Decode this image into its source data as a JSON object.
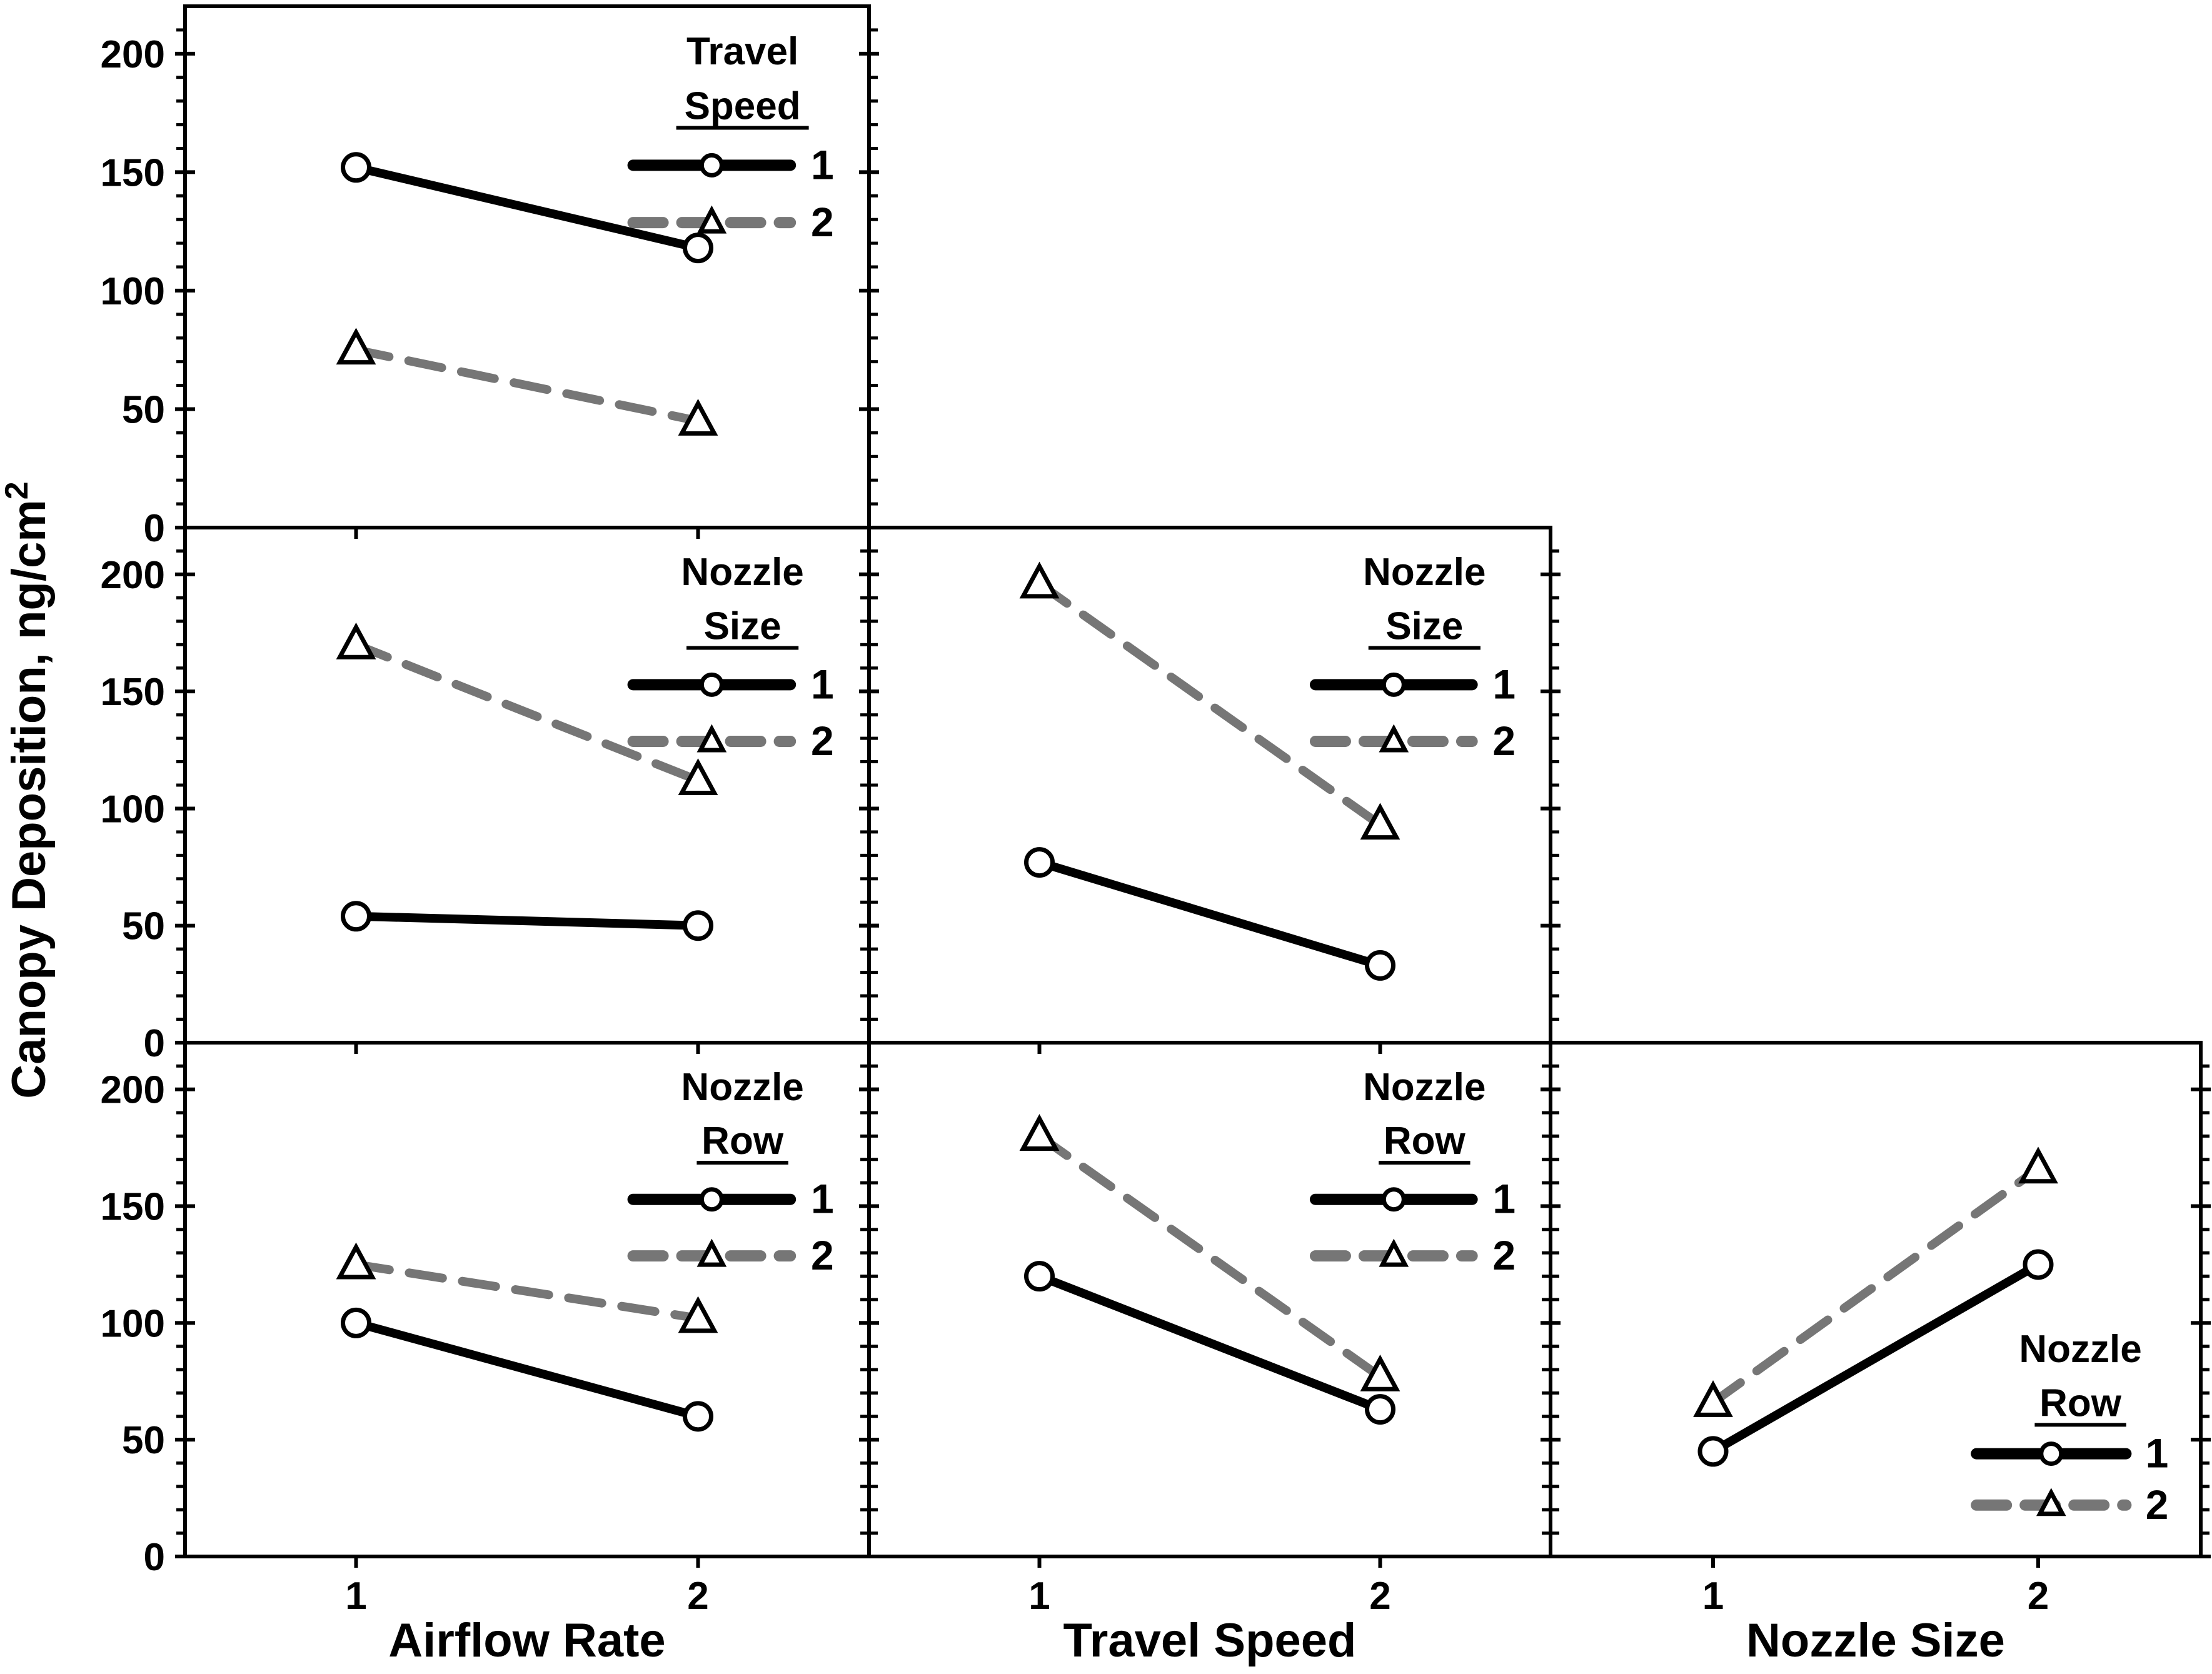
{
  "figure": {
    "background": "#ffffff",
    "border_color": "#000000",
    "accent_gray": "#767676"
  },
  "chart_data": {
    "type": "line",
    "description": "Two-way interaction plots of Canopy Deposition versus Airflow Rate, Travel Speed and Nozzle Size",
    "ylabel_main": "Canopy Deposition, ng/cm",
    "ylabel_sup": "2",
    "x_categories": [
      "1",
      "2"
    ],
    "x_axis_titles": [
      "Airflow Rate",
      "Travel Speed",
      "Nozzle Size"
    ],
    "y_axis": {
      "ticks": [
        0,
        50,
        100,
        150,
        200
      ],
      "minor_step": 10,
      "ylim": [
        0,
        220
      ],
      "grid": "off"
    },
    "legend_position_default": "top-right",
    "series_meta": [
      {
        "name": "1",
        "line_style": "solid",
        "color": "#000000",
        "marker": "circle"
      },
      {
        "name": "2",
        "line_style": "dashed",
        "color": "#767676",
        "marker": "triangle"
      }
    ],
    "panels": [
      {
        "id": "top-left",
        "row": 0,
        "col": 0,
        "x_variable": "Airflow Rate",
        "legend_title": [
          "Travel",
          "Speed"
        ],
        "legend_position": "top-right",
        "series": [
          {
            "level": "1",
            "values": [
              152,
              118
            ]
          },
          {
            "level": "2",
            "values": [
              75,
              45
            ]
          }
        ]
      },
      {
        "id": "middle-left",
        "row": 1,
        "col": 0,
        "x_variable": "Airflow Rate",
        "legend_title": [
          "Nozzle",
          "Size"
        ],
        "legend_position": "top-right",
        "series": [
          {
            "level": "1",
            "values": [
              54,
              50
            ]
          },
          {
            "level": "2",
            "values": [
              170,
              112
            ]
          }
        ]
      },
      {
        "id": "middle-center",
        "row": 1,
        "col": 1,
        "x_variable": "Travel Speed",
        "legend_title": [
          "Nozzle",
          "Size"
        ],
        "legend_position": "top-right",
        "series": [
          {
            "level": "1",
            "values": [
              77,
              33
            ]
          },
          {
            "level": "2",
            "values": [
              196,
              93
            ]
          }
        ]
      },
      {
        "id": "bottom-left",
        "row": 2,
        "col": 0,
        "x_variable": "Airflow Rate",
        "legend_title": [
          "Nozzle",
          "Row"
        ],
        "legend_position": "top-right",
        "series": [
          {
            "level": "1",
            "values": [
              100,
              60
            ]
          },
          {
            "level": "2",
            "values": [
              125,
              102
            ]
          }
        ]
      },
      {
        "id": "bottom-center",
        "row": 2,
        "col": 1,
        "x_variable": "Travel Speed",
        "legend_title": [
          "Nozzle",
          "Row"
        ],
        "legend_position": "top-right",
        "series": [
          {
            "level": "1",
            "values": [
              120,
              63
            ]
          },
          {
            "level": "2",
            "values": [
              180,
              77
            ]
          }
        ]
      },
      {
        "id": "bottom-right",
        "row": 2,
        "col": 2,
        "x_variable": "Nozzle Size",
        "legend_title": [
          "Nozzle",
          "Row"
        ],
        "legend_position": "bottom-right",
        "series": [
          {
            "level": "1",
            "values": [
              45,
              125
            ]
          },
          {
            "level": "2",
            "values": [
              66,
              166
            ]
          }
        ]
      }
    ]
  }
}
